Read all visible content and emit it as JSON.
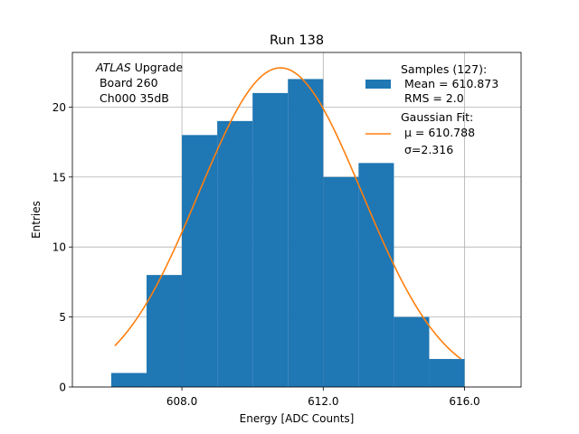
{
  "chart_data": {
    "type": "bar",
    "title": "Run 138",
    "xlabel": "Energy [ADC Counts]",
    "ylabel": "Entries",
    "xlim": [
      604.9,
      617.6
    ],
    "ylim": [
      0,
      23.9
    ],
    "xticks": [
      608.0,
      612.0,
      616.0
    ],
    "xtick_labels": [
      "608.0",
      "612.0",
      "616.0"
    ],
    "yticks": [
      0,
      5,
      10,
      15,
      20
    ],
    "ytick_labels": [
      "0",
      "5",
      "10",
      "15",
      "20"
    ],
    "grid": true,
    "histogram": {
      "bin_edges": [
        606,
        607,
        608,
        609,
        610,
        611,
        612,
        613,
        614,
        615,
        616
      ],
      "counts": [
        1,
        8,
        18,
        19,
        21,
        22,
        15,
        16,
        5,
        2
      ],
      "color": "#1f77b4"
    },
    "fit": {
      "type": "gaussian",
      "mu": 610.788,
      "sigma": 2.316,
      "amplitude": 22.8,
      "x_range": [
        606.1,
        615.9
      ],
      "color": "#ff7f0e"
    },
    "annotation": {
      "line1_italic": "ATLAS",
      "line1_rest": " Upgrade",
      "line2": " Board 260",
      "line3": " Ch000 35dB"
    },
    "legend": {
      "position": "top-right",
      "entries": [
        {
          "series": "histogram",
          "lines": [
            "Samples (127):",
            " Mean = 610.873",
            " RMS = 2.0"
          ]
        },
        {
          "series": "fit",
          "lines": [
            "Gaussian Fit:",
            " μ = 610.788",
            " σ=2.316"
          ]
        }
      ]
    }
  }
}
